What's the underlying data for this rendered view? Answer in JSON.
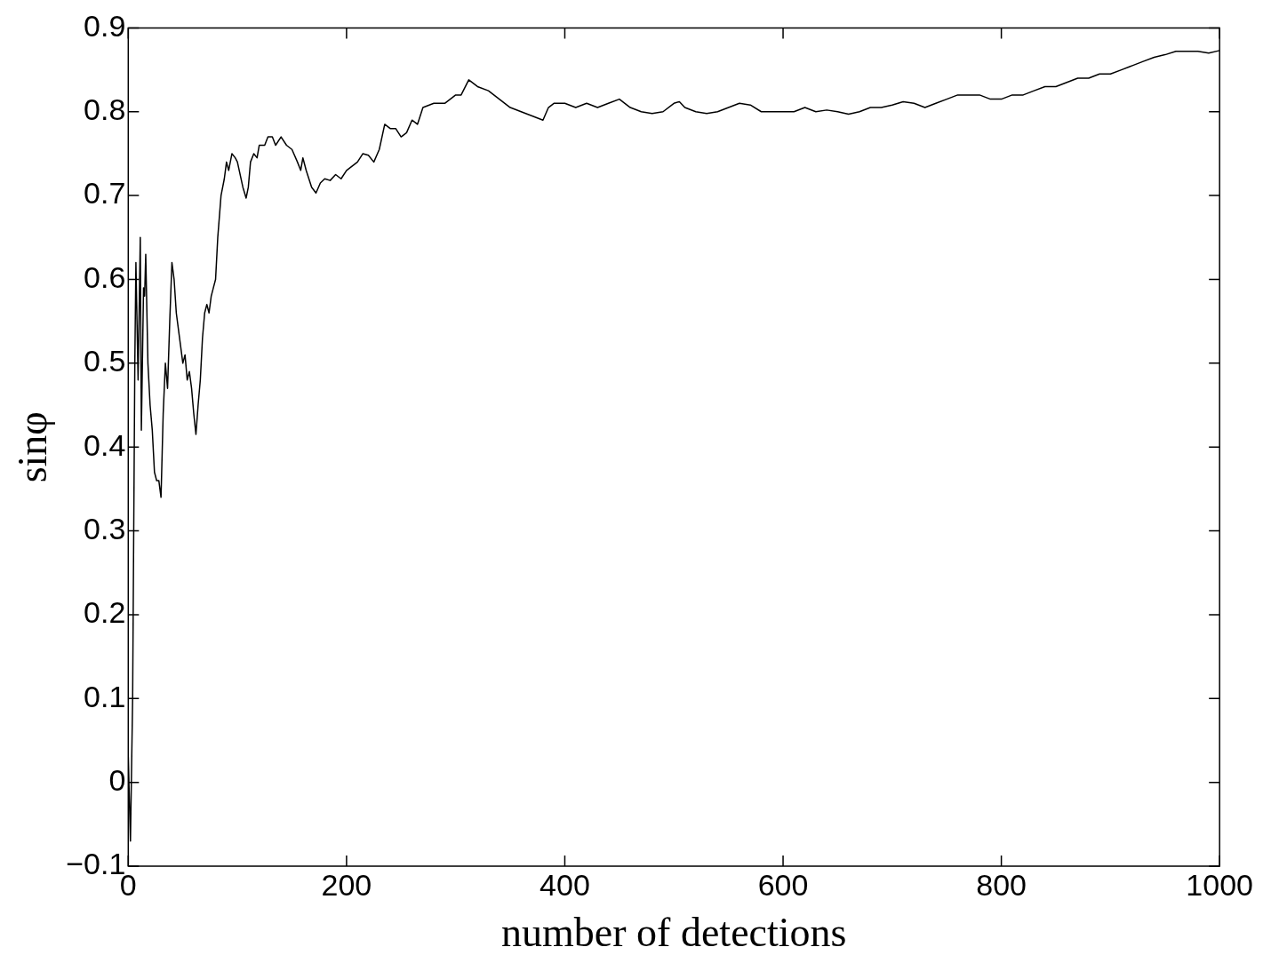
{
  "chart_data": {
    "type": "line",
    "xlabel": "number of detections",
    "ylabel": "sinφ",
    "xlim": [
      0,
      1000
    ],
    "xticks": [
      0,
      200,
      400,
      600,
      800,
      1000
    ],
    "ylim": [
      -0.1,
      0.9
    ],
    "yticks": [
      {
        "value": -0.1,
        "label": "−0.1"
      },
      0,
      0.1,
      0.2,
      0.3,
      0.4,
      0.5,
      0.6,
      0.7,
      0.8,
      0.9
    ],
    "grid": false,
    "legend": false,
    "marker": "none",
    "line_style": "solid",
    "series": [
      {
        "color": "#000000",
        "x": [
          0,
          2,
          4,
          6,
          7,
          9,
          11,
          12,
          14,
          15,
          16,
          18,
          20,
          22,
          24,
          26,
          28,
          30,
          32,
          34,
          36,
          38,
          40,
          42,
          44,
          46,
          48,
          50,
          52,
          54,
          56,
          58,
          60,
          62,
          64,
          66,
          68,
          70,
          72,
          74,
          76,
          78,
          80,
          82,
          85,
          88,
          90,
          92,
          95,
          98,
          100,
          105,
          108,
          110,
          112,
          115,
          118,
          120,
          125,
          128,
          132,
          135,
          140,
          145,
          150,
          155,
          158,
          160,
          163,
          168,
          172,
          176,
          180,
          185,
          190,
          195,
          200,
          205,
          210,
          215,
          220,
          225,
          230,
          235,
          240,
          245,
          250,
          255,
          260,
          265,
          270,
          280,
          290,
          295,
          300,
          305,
          312,
          320,
          330,
          340,
          350,
          360,
          370,
          380,
          385,
          390,
          400,
          410,
          420,
          430,
          440,
          450,
          460,
          470,
          480,
          490,
          500,
          505,
          510,
          520,
          530,
          540,
          550,
          560,
          570,
          580,
          590,
          600,
          610,
          620,
          630,
          640,
          650,
          660,
          670,
          680,
          690,
          700,
          710,
          720,
          730,
          740,
          750,
          760,
          770,
          780,
          790,
          800,
          810,
          820,
          830,
          840,
          850,
          860,
          870,
          880,
          890,
          900,
          910,
          920,
          930,
          940,
          950,
          960,
          970,
          980,
          990,
          1000
        ],
        "values": [
          0.03,
          -0.07,
          0.1,
          0.5,
          0.62,
          0.48,
          0.65,
          0.42,
          0.59,
          0.58,
          0.63,
          0.5,
          0.45,
          0.42,
          0.37,
          0.36,
          0.36,
          0.34,
          0.44,
          0.5,
          0.47,
          0.55,
          0.62,
          0.6,
          0.56,
          0.54,
          0.52,
          0.5,
          0.51,
          0.48,
          0.49,
          0.47,
          0.44,
          0.415,
          0.45,
          0.48,
          0.53,
          0.56,
          0.57,
          0.56,
          0.58,
          0.59,
          0.6,
          0.65,
          0.7,
          0.72,
          0.74,
          0.73,
          0.75,
          0.745,
          0.74,
          0.71,
          0.697,
          0.71,
          0.74,
          0.75,
          0.745,
          0.76,
          0.76,
          0.77,
          0.77,
          0.76,
          0.77,
          0.76,
          0.755,
          0.74,
          0.73,
          0.745,
          0.73,
          0.71,
          0.703,
          0.715,
          0.72,
          0.718,
          0.725,
          0.72,
          0.73,
          0.735,
          0.74,
          0.75,
          0.748,
          0.74,
          0.755,
          0.785,
          0.78,
          0.78,
          0.77,
          0.775,
          0.79,
          0.785,
          0.805,
          0.81,
          0.81,
          0.815,
          0.82,
          0.82,
          0.838,
          0.83,
          0.825,
          0.815,
          0.805,
          0.8,
          0.795,
          0.79,
          0.805,
          0.81,
          0.81,
          0.805,
          0.81,
          0.805,
          0.81,
          0.815,
          0.805,
          0.8,
          0.798,
          0.8,
          0.81,
          0.812,
          0.805,
          0.8,
          0.798,
          0.8,
          0.805,
          0.81,
          0.808,
          0.8,
          0.8,
          0.8,
          0.8,
          0.805,
          0.8,
          0.802,
          0.8,
          0.797,
          0.8,
          0.805,
          0.805,
          0.808,
          0.812,
          0.81,
          0.805,
          0.81,
          0.815,
          0.82,
          0.82,
          0.82,
          0.815,
          0.815,
          0.82,
          0.82,
          0.825,
          0.83,
          0.83,
          0.835,
          0.84,
          0.84,
          0.845,
          0.845,
          0.85,
          0.855,
          0.86,
          0.865,
          0.868,
          0.872,
          0.872,
          0.872,
          0.87,
          0.873
        ]
      }
    ]
  }
}
